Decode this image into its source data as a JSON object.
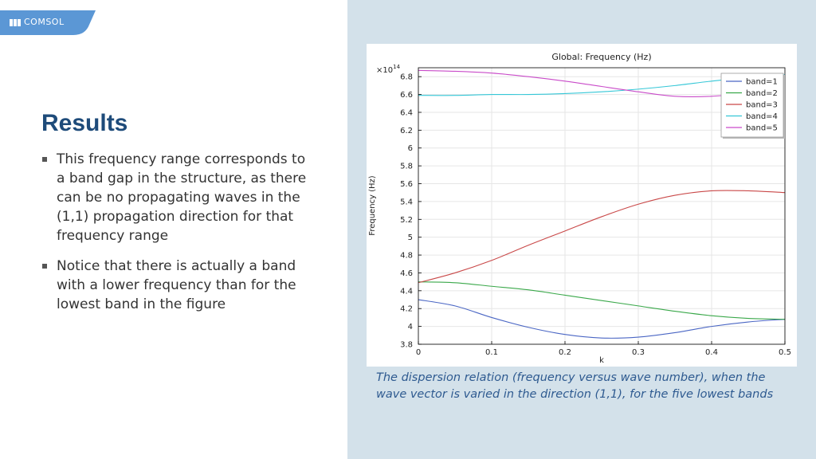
{
  "brand": {
    "name": "COMSOL",
    "color": "#5b97d5"
  },
  "slide": {
    "title": "Results",
    "bullets": [
      "This frequency range corresponds to a band gap in the structure, as there can be no propagating waves in the (1,1) propagation direction for that frequency range",
      "Notice that there is actually a band with a lower frequency than for the lowest band in the figure"
    ],
    "caption": "The dispersion relation (frequency versus wave number), when the wave vector is varied in the direction (1,1), for the five lowest bands"
  },
  "chart_data": {
    "type": "line",
    "title": "Global: Frequency (Hz)",
    "xlabel": "k",
    "ylabel": "Frequency (Hz)",
    "y_multiplier": "×10",
    "y_multiplier_exp": "14",
    "xlim": [
      0,
      0.5
    ],
    "ylim": [
      3.8,
      6.9
    ],
    "xticks": [
      0,
      0.1,
      0.2,
      0.3,
      0.4,
      0.5
    ],
    "yticks": [
      3.8,
      4,
      4.2,
      4.4,
      4.6,
      4.8,
      5,
      5.2,
      5.4,
      5.6,
      5.8,
      6,
      6.2,
      6.4,
      6.6,
      6.8
    ],
    "grid": true,
    "legend_position": "top-right",
    "x": [
      0,
      0.05,
      0.1,
      0.15,
      0.2,
      0.25,
      0.3,
      0.35,
      0.4,
      0.45,
      0.5
    ],
    "series": [
      {
        "name": "band=1",
        "color": "#4a66c4",
        "values": [
          4.3,
          4.23,
          4.1,
          3.99,
          3.91,
          3.87,
          3.88,
          3.93,
          4.0,
          4.05,
          4.08
        ]
      },
      {
        "name": "band=2",
        "color": "#3aa84a",
        "values": [
          4.5,
          4.49,
          4.45,
          4.41,
          4.35,
          4.29,
          4.23,
          4.17,
          4.12,
          4.09,
          4.08
        ]
      },
      {
        "name": "band=3",
        "color": "#c94848",
        "values": [
          4.49,
          4.6,
          4.74,
          4.91,
          5.07,
          5.23,
          5.37,
          5.47,
          5.52,
          5.52,
          5.5
        ]
      },
      {
        "name": "band=4",
        "color": "#35c7d7",
        "values": [
          6.59,
          6.59,
          6.6,
          6.6,
          6.61,
          6.63,
          6.66,
          6.7,
          6.75,
          6.79,
          6.82
        ]
      },
      {
        "name": "band=5",
        "color": "#c94bc9",
        "values": [
          6.87,
          6.86,
          6.84,
          6.8,
          6.75,
          6.69,
          6.63,
          6.58,
          6.58,
          6.62,
          6.67
        ]
      }
    ]
  }
}
